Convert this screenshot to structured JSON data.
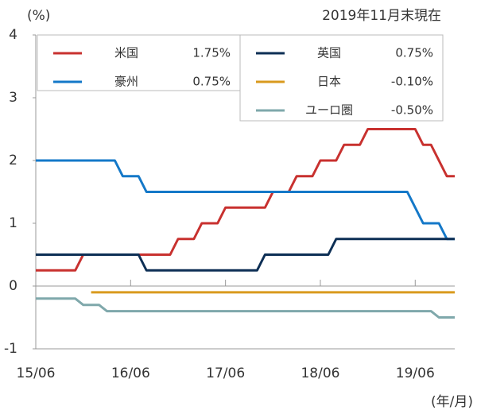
{
  "chart_data": {
    "type": "line",
    "unit_label": "(%)",
    "note": "2019年11月末現在",
    "x_axis_label": "(年/月)",
    "x": [
      "15/06",
      "15/07",
      "15/08",
      "15/09",
      "15/10",
      "15/11",
      "15/12",
      "16/01",
      "16/02",
      "16/03",
      "16/04",
      "16/05",
      "16/06",
      "16/07",
      "16/08",
      "16/09",
      "16/10",
      "16/11",
      "16/12",
      "17/01",
      "17/02",
      "17/03",
      "17/04",
      "17/05",
      "17/06",
      "17/07",
      "17/08",
      "17/09",
      "17/10",
      "17/11",
      "17/12",
      "18/01",
      "18/02",
      "18/03",
      "18/04",
      "18/05",
      "18/06",
      "18/07",
      "18/08",
      "18/09",
      "18/10",
      "18/11",
      "18/12",
      "19/01",
      "19/02",
      "19/03",
      "19/04",
      "19/05",
      "19/06",
      "19/07",
      "19/08",
      "19/09",
      "19/10",
      "19/11"
    ],
    "xticks": [
      "15/06",
      "16/06",
      "17/06",
      "18/06",
      "19/06"
    ],
    "ylim": [
      -1,
      4
    ],
    "yticks": [
      -1,
      0,
      1,
      2,
      3,
      4
    ],
    "series": [
      {
        "name": "米国",
        "label": "1.75%",
        "color": "#c8312f",
        "values": [
          0.25,
          0.25,
          0.25,
          0.25,
          0.25,
          0.25,
          0.5,
          0.5,
          0.5,
          0.5,
          0.5,
          0.5,
          0.5,
          0.5,
          0.5,
          0.5,
          0.5,
          0.5,
          0.75,
          0.75,
          0.75,
          1.0,
          1.0,
          1.0,
          1.25,
          1.25,
          1.25,
          1.25,
          1.25,
          1.25,
          1.5,
          1.5,
          1.5,
          1.75,
          1.75,
          1.75,
          2.0,
          2.0,
          2.0,
          2.25,
          2.25,
          2.25,
          2.5,
          2.5,
          2.5,
          2.5,
          2.5,
          2.5,
          2.5,
          2.25,
          2.25,
          2.0,
          1.75,
          1.75
        ]
      },
      {
        "name": "豪州",
        "label": "0.75%",
        "color": "#1478c8",
        "values": [
          2.0,
          2.0,
          2.0,
          2.0,
          2.0,
          2.0,
          2.0,
          2.0,
          2.0,
          2.0,
          2.0,
          1.75,
          1.75,
          1.75,
          1.5,
          1.5,
          1.5,
          1.5,
          1.5,
          1.5,
          1.5,
          1.5,
          1.5,
          1.5,
          1.5,
          1.5,
          1.5,
          1.5,
          1.5,
          1.5,
          1.5,
          1.5,
          1.5,
          1.5,
          1.5,
          1.5,
          1.5,
          1.5,
          1.5,
          1.5,
          1.5,
          1.5,
          1.5,
          1.5,
          1.5,
          1.5,
          1.5,
          1.5,
          1.25,
          1.0,
          1.0,
          1.0,
          0.75,
          0.75
        ]
      },
      {
        "name": "英国",
        "label": "0.75%",
        "color": "#0d2f55",
        "values": [
          0.5,
          0.5,
          0.5,
          0.5,
          0.5,
          0.5,
          0.5,
          0.5,
          0.5,
          0.5,
          0.5,
          0.5,
          0.5,
          0.5,
          0.25,
          0.25,
          0.25,
          0.25,
          0.25,
          0.25,
          0.25,
          0.25,
          0.25,
          0.25,
          0.25,
          0.25,
          0.25,
          0.25,
          0.25,
          0.5,
          0.5,
          0.5,
          0.5,
          0.5,
          0.5,
          0.5,
          0.5,
          0.5,
          0.75,
          0.75,
          0.75,
          0.75,
          0.75,
          0.75,
          0.75,
          0.75,
          0.75,
          0.75,
          0.75,
          0.75,
          0.75,
          0.75,
          0.75,
          0.75
        ]
      },
      {
        "name": "日本",
        "label": "-0.10%",
        "color": "#d99a1e",
        "values": [
          null,
          null,
          null,
          null,
          null,
          null,
          null,
          -0.1,
          -0.1,
          -0.1,
          -0.1,
          -0.1,
          -0.1,
          -0.1,
          -0.1,
          -0.1,
          -0.1,
          -0.1,
          -0.1,
          -0.1,
          -0.1,
          -0.1,
          -0.1,
          -0.1,
          -0.1,
          -0.1,
          -0.1,
          -0.1,
          -0.1,
          -0.1,
          -0.1,
          -0.1,
          -0.1,
          -0.1,
          -0.1,
          -0.1,
          -0.1,
          -0.1,
          -0.1,
          -0.1,
          -0.1,
          -0.1,
          -0.1,
          -0.1,
          -0.1,
          -0.1,
          -0.1,
          -0.1,
          -0.1,
          -0.1,
          -0.1,
          -0.1,
          -0.1,
          -0.1
        ]
      },
      {
        "name": "ユーロ圏",
        "label": "-0.50%",
        "color": "#7fa8ab",
        "values": [
          -0.2,
          -0.2,
          -0.2,
          -0.2,
          -0.2,
          -0.2,
          -0.3,
          -0.3,
          -0.3,
          -0.4,
          -0.4,
          -0.4,
          -0.4,
          -0.4,
          -0.4,
          -0.4,
          -0.4,
          -0.4,
          -0.4,
          -0.4,
          -0.4,
          -0.4,
          -0.4,
          -0.4,
          -0.4,
          -0.4,
          -0.4,
          -0.4,
          -0.4,
          -0.4,
          -0.4,
          -0.4,
          -0.4,
          -0.4,
          -0.4,
          -0.4,
          -0.4,
          -0.4,
          -0.4,
          -0.4,
          -0.4,
          -0.4,
          -0.4,
          -0.4,
          -0.4,
          -0.4,
          -0.4,
          -0.4,
          -0.4,
          -0.4,
          -0.4,
          -0.5,
          -0.5,
          -0.5
        ]
      }
    ]
  }
}
